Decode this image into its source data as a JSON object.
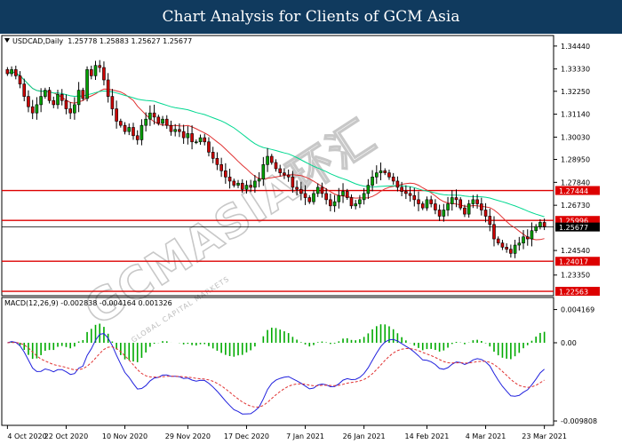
{
  "banner": {
    "title": "Chart Analysis for Clients of GCM Asia"
  },
  "header": {
    "symbol": "USDCAD,Daily",
    "ohlc": "1.25778 1.25883 1.25627 1.25677",
    "macd": "MACD(12,26,9) -0.002838 -0.004164 0.001326"
  },
  "watermark": {
    "text": "GCMASIA环汇",
    "sub": "GLOBAL CAPITAL MARKETS"
  },
  "colors": {
    "bull": "#00a000",
    "bear": "#cc0000",
    "candle": "#000000",
    "ma_fast": "#e03030",
    "ma_slow": "#00d890",
    "level": "#dd0000",
    "macd_line": "#2020dd",
    "macd_signal": "#e03030",
    "macd_hist": "#00aa00"
  },
  "chart_data": [
    {
      "type": "candlestick",
      "symbol": "USDCAD",
      "timeframe": "Daily",
      "ylim": [
        1.2235,
        1.3495
      ],
      "y_ticks": [
        "1.34440",
        "1.33330",
        "1.32250",
        "1.31140",
        "1.30030",
        "1.28950",
        "1.27840",
        "1.26730",
        "1.24540",
        "1.23350"
      ],
      "x_ticks": [
        "4 Oct 2020",
        "22 Oct 2020",
        "10 Nov 2020",
        "29 Nov 2020",
        "17 Dec 2020",
        "7 Jan 2021",
        "26 Jan 2021",
        "14 Feb 2021",
        "4 Mar 2021",
        "23 Mar 2021"
      ],
      "current_price": "1.25677",
      "levels": [
        {
          "price": 1.27444,
          "label": "1.27444"
        },
        {
          "price": 1.25996,
          "label": "1.25996"
        },
        {
          "price": 1.24017,
          "label": "1.24017"
        },
        {
          "price": 1.22563,
          "label": "1.22563"
        }
      ],
      "close": [
        1.331,
        1.333,
        1.33,
        1.326,
        1.32,
        1.315,
        1.312,
        1.316,
        1.32,
        1.323,
        1.318,
        1.316,
        1.321,
        1.318,
        1.314,
        1.312,
        1.316,
        1.323,
        1.319,
        1.333,
        1.33,
        1.335,
        1.334,
        1.328,
        1.32,
        1.314,
        1.308,
        1.306,
        1.303,
        1.305,
        1.301,
        1.299,
        1.306,
        1.309,
        1.312,
        1.31,
        1.307,
        1.309,
        1.306,
        1.303,
        1.304,
        1.303,
        1.3,
        1.302,
        1.298,
        1.298,
        1.3,
        1.298,
        1.293,
        1.29,
        1.287,
        1.284,
        1.281,
        1.279,
        1.277,
        1.278,
        1.275,
        1.277,
        1.276,
        1.279,
        1.28,
        1.287,
        1.291,
        1.288,
        1.285,
        1.283,
        1.282,
        1.281,
        1.276,
        1.275,
        1.273,
        1.271,
        1.269,
        1.273,
        1.276,
        1.273,
        1.27,
        1.267,
        1.269,
        1.272,
        1.274,
        1.271,
        1.267,
        1.268,
        1.27,
        1.273,
        1.277,
        1.281,
        1.283,
        1.284,
        1.283,
        1.281,
        1.279,
        1.276,
        1.274,
        1.273,
        1.272,
        1.27,
        1.268,
        1.266,
        1.27,
        1.268,
        1.265,
        1.262,
        1.265,
        1.268,
        1.271,
        1.27,
        1.266,
        1.263,
        1.268,
        1.27,
        1.268,
        1.265,
        1.262,
        1.258,
        1.251,
        1.249,
        1.247,
        1.246,
        1.244,
        1.248,
        1.249,
        1.252,
        1.251,
        1.255,
        1.257,
        1.259,
        1.257
      ]
    },
    {
      "type": "line",
      "title": "MACD(12,26,9)",
      "values_printed": {
        "macd": "-0.002838",
        "signal": "-0.004164",
        "histogram": "0.001326"
      },
      "ylim": [
        -0.01036,
        0.00568
      ],
      "y_ticks": [
        "0.004169",
        "0.00",
        "-0.009808"
      ]
    }
  ]
}
